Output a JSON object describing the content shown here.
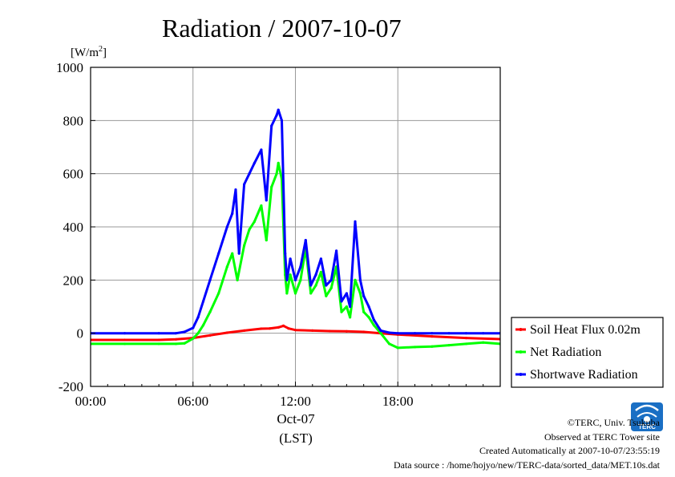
{
  "chart_data": {
    "type": "line",
    "title": "Radiation / 2007-10-07",
    "unit_label": "[W/m2]",
    "unit_main": "[W/m",
    "unit_sup": "2",
    "unit_close": "]",
    "xlabel_date": "Oct-07",
    "xlabel": "(LST)",
    "ylim": [
      -200,
      1000
    ],
    "xlim_hours": [
      0,
      24
    ],
    "y_ticks": [
      "1000",
      "800",
      "600",
      "400",
      "200",
      "0",
      "-200"
    ],
    "y_tick_values": [
      1000,
      800,
      600,
      400,
      200,
      0,
      -200
    ],
    "x_ticks": [
      "00:00",
      "06:00",
      "12:00",
      "18:00"
    ],
    "x_tick_values": [
      0,
      6,
      12,
      18
    ],
    "grid": true,
    "legend_position": "right",
    "series": [
      {
        "name": "Soil Heat Flux 0.02m",
        "color": "#ff0000",
        "x": [
          0,
          2,
          4,
          5,
          6,
          7,
          8,
          9,
          10,
          10.5,
          11,
          11.3,
          11.6,
          12,
          13,
          14,
          15,
          16,
          17,
          18,
          20,
          22,
          24
        ],
        "y": [
          -25,
          -25,
          -25,
          -23,
          -18,
          -8,
          2,
          10,
          17,
          18,
          22,
          28,
          18,
          12,
          10,
          8,
          7,
          5,
          0,
          -5,
          -12,
          -18,
          -22
        ]
      },
      {
        "name": "Net Radiation",
        "color": "#00ff00",
        "x": [
          0,
          2,
          4,
          5,
          5.5,
          6,
          6.3,
          6.6,
          7,
          7.5,
          8,
          8.3,
          8.6,
          9,
          9.3,
          9.6,
          10,
          10.3,
          10.6,
          10.9,
          11,
          11.2,
          11.4,
          11.5,
          11.7,
          12,
          12.3,
          12.6,
          12.9,
          13.2,
          13.5,
          13.8,
          14.1,
          14.4,
          14.7,
          15,
          15.2,
          15.5,
          15.8,
          16,
          16.3,
          16.6,
          17,
          17.5,
          18,
          19,
          20,
          21,
          22,
          23,
          24
        ],
        "y": [
          -40,
          -40,
          -40,
          -40,
          -38,
          -20,
          0,
          30,
          80,
          150,
          250,
          300,
          200,
          330,
          390,
          420,
          480,
          350,
          550,
          600,
          640,
          580,
          220,
          150,
          220,
          150,
          200,
          320,
          150,
          180,
          230,
          140,
          170,
          250,
          80,
          100,
          60,
          200,
          150,
          80,
          60,
          30,
          0,
          -40,
          -55,
          -52,
          -50,
          -45,
          -40,
          -35,
          -40
        ]
      },
      {
        "name": "Shortwave Radiation",
        "color": "#0000ff",
        "x": [
          0,
          2,
          4,
          5,
          5.5,
          6,
          6.3,
          6.6,
          7,
          7.5,
          8,
          8.3,
          8.5,
          8.7,
          9,
          9.3,
          9.6,
          10,
          10.3,
          10.6,
          10.9,
          11,
          11.2,
          11.4,
          11.5,
          11.7,
          12,
          12.3,
          12.6,
          12.9,
          13.2,
          13.5,
          13.8,
          14.1,
          14.4,
          14.7,
          15,
          15.2,
          15.5,
          15.8,
          16,
          16.3,
          16.6,
          17,
          17.5,
          18,
          19,
          20,
          21,
          22,
          23,
          24
        ],
        "y": [
          0,
          0,
          0,
          0,
          5,
          20,
          60,
          120,
          200,
          300,
          400,
          450,
          540,
          300,
          560,
          600,
          640,
          690,
          500,
          780,
          820,
          840,
          800,
          300,
          200,
          280,
          200,
          250,
          350,
          180,
          220,
          280,
          180,
          200,
          310,
          120,
          150,
          100,
          420,
          200,
          140,
          100,
          50,
          10,
          2,
          0,
          0,
          0,
          0,
          0,
          0,
          0
        ]
      }
    ]
  },
  "credits": {
    "copyright": "©TERC, Univ. Tsukuba",
    "observed": "Observed at TERC Tower site",
    "created": "Created Automatically at 2007-10-07/23:55:19",
    "source": "Data source : /home/hojyo/new/TERC-data/sorted_data/MET.10s.dat"
  },
  "logo": {
    "text": "TERC",
    "color": "#1a6fc4"
  }
}
